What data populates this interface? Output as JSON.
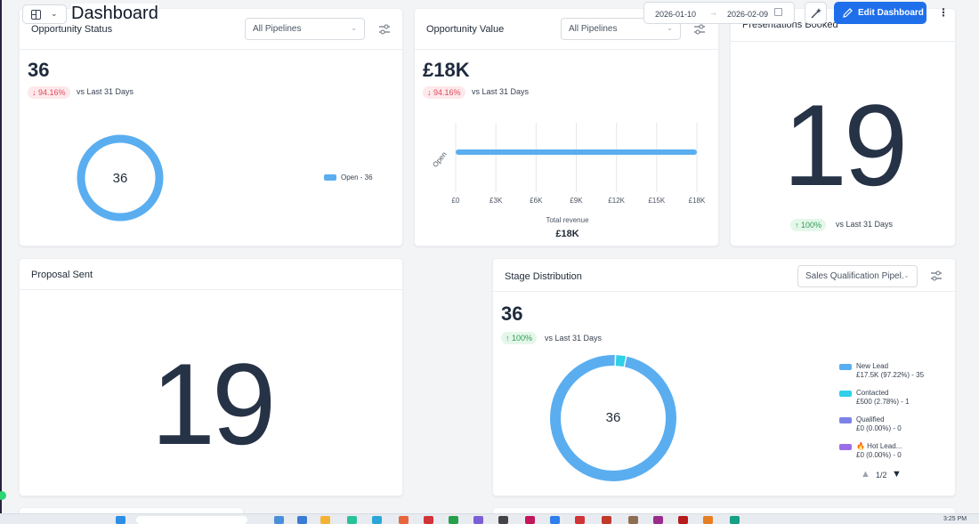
{
  "header": {
    "title": "Dashboard",
    "date_from": "2026-01-10",
    "date_to": "2026-02-09",
    "edit_label": "Edit Dashboard"
  },
  "cards": {
    "opportunity_status": {
      "title": "Opportunity Status",
      "filter": "All Pipelines",
      "value": "36",
      "change": "94.16%",
      "vs": "vs Last 31 Days",
      "donut_center": "36",
      "legend": "Open - 36"
    },
    "opportunity_value": {
      "title": "Opportunity Value",
      "filter": "All Pipelines",
      "value": "£18K",
      "change": "94.16%",
      "vs": "vs Last 31 Days",
      "footer_label": "Total revenue",
      "footer_value": "£18K"
    },
    "presentations": {
      "title": "Presentations Booked",
      "value": "19",
      "change": "100%",
      "vs": "vs Last 31 Days"
    },
    "proposal": {
      "title": "Proposal Sent",
      "value": "19"
    },
    "stage": {
      "title": "Stage Distribution",
      "filter": "Sales Qualification Pipel...",
      "value": "36",
      "change": "100%",
      "vs": "vs Last 31 Days",
      "donut_center": "36",
      "legend": [
        {
          "name": "New Lead",
          "detail": "£17.5K (97.22%) - 35",
          "color": "#5aaef0"
        },
        {
          "name": "Contacted",
          "detail": "£500 (2.78%) - 1",
          "color": "#2fd0e8"
        },
        {
          "name": "Qualified",
          "detail": "£0 (0.00%) - 0",
          "color": "#7b83e8"
        },
        {
          "name": "🔥 Hot Lead...",
          "detail": "£0 (0.00%) - 0",
          "color": "#9b6ee8"
        }
      ],
      "pager": "1/2"
    }
  },
  "chart_data": {
    "type": "bar",
    "orientation": "horizontal",
    "categories": [
      "Open"
    ],
    "values": [
      18000
    ],
    "xlabel": "Total revenue",
    "xticks": [
      "£0",
      "£3K",
      "£6K",
      "£9K",
      "£12K",
      "£15K",
      "£18K"
    ],
    "xlim": [
      0,
      18000
    ],
    "color": "#5aaef0"
  },
  "colors": {
    "accent": "#1f6feb",
    "donut": "#5aaef0"
  },
  "taskbar": {
    "clock": "3:25 PM"
  }
}
